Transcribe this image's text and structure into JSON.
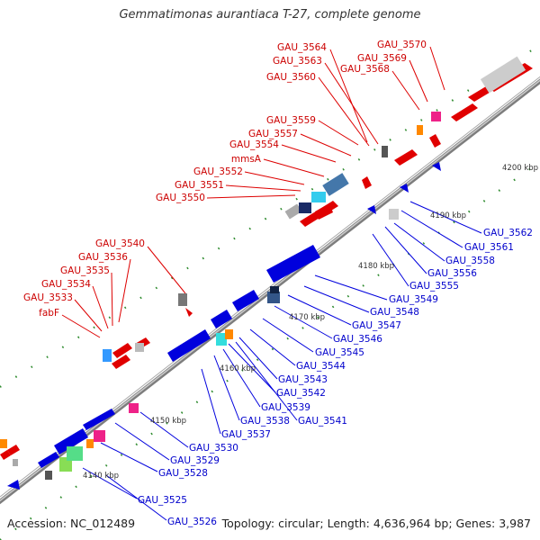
{
  "title": "Gemmatimonas aurantiaca T-27, complete genome",
  "footer": {
    "accession": "Accession: NC_012489",
    "topology": "Topology: circular; Length: 4,636,964 bp; Genes: 3,987"
  },
  "colors": {
    "forward": "#ff0000",
    "reverse": "#0000ff",
    "label_forward": "#cc0000",
    "label_reverse": "#0000cc",
    "backbone": "#8a8a8a",
    "ticks": "#2e8b2e"
  },
  "kbp_markers": [
    "4140 kbp",
    "4150 kbp",
    "4160 kbp",
    "4170 kbp",
    "4180 kbp",
    "4190 kbp",
    "4200 kbp"
  ],
  "forward_genes": [
    "GAU_3564",
    "GAU_3570",
    "GAU_3563",
    "GAU_3569",
    "GAU_3568",
    "GAU_3560",
    "GAU_3559",
    "GAU_3557",
    "GAU_3554",
    "mmsA",
    "GAU_3552",
    "GAU_3551",
    "GAU_3550",
    "GAU_3540",
    "GAU_3536",
    "GAU_3535",
    "GAU_3534",
    "GAU_3533",
    "fabF"
  ],
  "reverse_genes": [
    "GAU_3562",
    "GAU_3561",
    "GAU_3558",
    "GAU_3556",
    "GAU_3555",
    "GAU_3549",
    "GAU_3548",
    "GAU_3547",
    "GAU_3546",
    "GAU_3545",
    "GAU_3544",
    "GAU_3543",
    "GAU_3542",
    "GAU_3539",
    "GAU_3541",
    "GAU_3538",
    "GAU_3537",
    "GAU_3530",
    "GAU_3529",
    "GAU_3528",
    "GAU_3525",
    "GAU_3526"
  ]
}
